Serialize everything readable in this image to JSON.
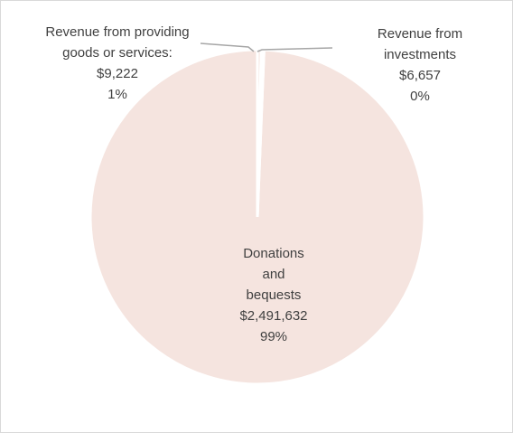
{
  "chart_data": {
    "type": "pie",
    "title": "",
    "slices": [
      {
        "label_lines": [
          "Donations",
          "and",
          "bequests"
        ],
        "value": 2491632,
        "value_text": "$2,491,632",
        "percent_text": "99%",
        "color": "#f5e4df"
      },
      {
        "label_lines": [
          "Revenue from providing",
          "goods or services:"
        ],
        "value": 9222,
        "value_text": "$9,222",
        "percent_text": "1%",
        "color": "#f5e4df"
      },
      {
        "label_lines": [
          "Revenue from",
          "investments"
        ],
        "value": 6657,
        "value_text": "$6,657",
        "percent_text": "0%",
        "color": "#f5e4df"
      }
    ],
    "slice_border_color": "#ffffff",
    "leader_line_color": "#a6a6a6",
    "text_color": "#404040",
    "legend": "none"
  }
}
